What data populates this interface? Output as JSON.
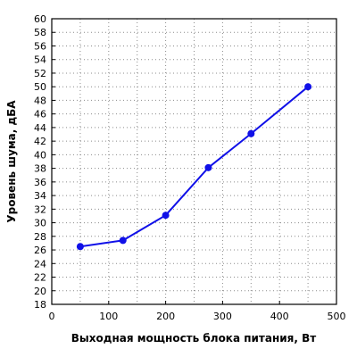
{
  "chart_data": {
    "type": "line",
    "xlabel": "Выходная мощность блока питания, Вт",
    "ylabel": "Уровень шума, дБА",
    "xlim": [
      0,
      500
    ],
    "ylim": [
      18,
      60
    ],
    "x_ticks": [
      0,
      100,
      200,
      300,
      400,
      500
    ],
    "y_ticks": [
      18,
      20,
      22,
      24,
      26,
      28,
      30,
      32,
      34,
      36,
      38,
      40,
      42,
      44,
      46,
      48,
      50,
      52,
      54,
      56,
      58,
      60
    ],
    "grid": true,
    "series": [
      {
        "color": "#1010e8",
        "x": [
          50,
          125,
          200,
          275,
          350,
          450
        ],
        "y": [
          26.5,
          27.4,
          31.1,
          38.1,
          43.1,
          50.0
        ]
      }
    ]
  }
}
